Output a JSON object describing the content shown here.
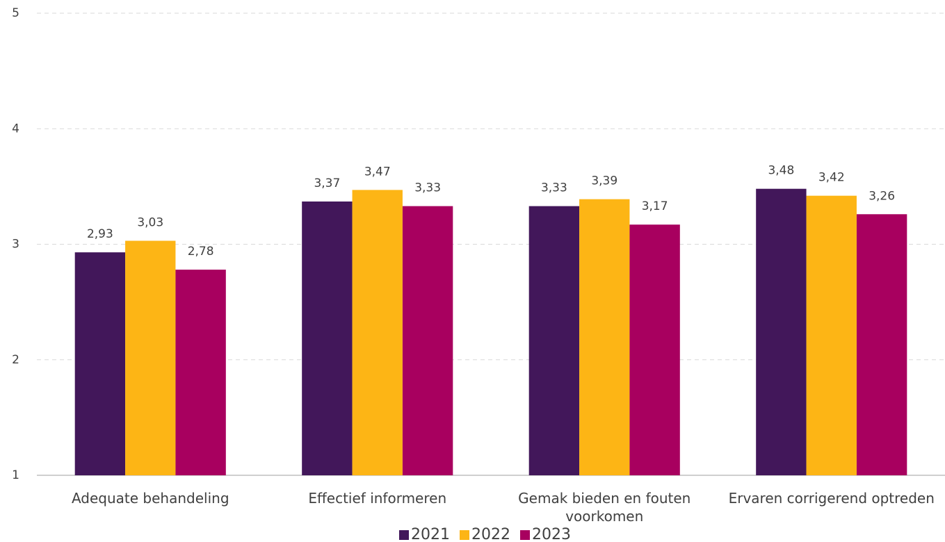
{
  "chart_data": {
    "type": "bar",
    "categories": [
      "Adequate behandeling",
      "Effectief informeren",
      "Gemak bieden en fouten voorkomen",
      "Ervaren corrigerend optreden"
    ],
    "series": [
      {
        "name": "2021",
        "color": "#42175a",
        "values": [
          2.93,
          3.37,
          3.33,
          3.48
        ],
        "value_labels": [
          "2,93",
          "3,37",
          "3,33",
          "3,48"
        ]
      },
      {
        "name": "2022",
        "color": "#fdb515",
        "values": [
          3.03,
          3.47,
          3.39,
          3.42
        ],
        "value_labels": [
          "3,03",
          "3,47",
          "3,39",
          "3,42"
        ]
      },
      {
        "name": "2023",
        "color": "#a8005f",
        "values": [
          2.78,
          3.33,
          3.17,
          3.26
        ],
        "value_labels": [
          "2,78",
          "3,33",
          "3,17",
          "3,26"
        ]
      }
    ],
    "ylim": [
      1,
      5
    ],
    "yticks": [
      1,
      2,
      3,
      4,
      5
    ],
    "grid": true,
    "legend": "bottom"
  }
}
